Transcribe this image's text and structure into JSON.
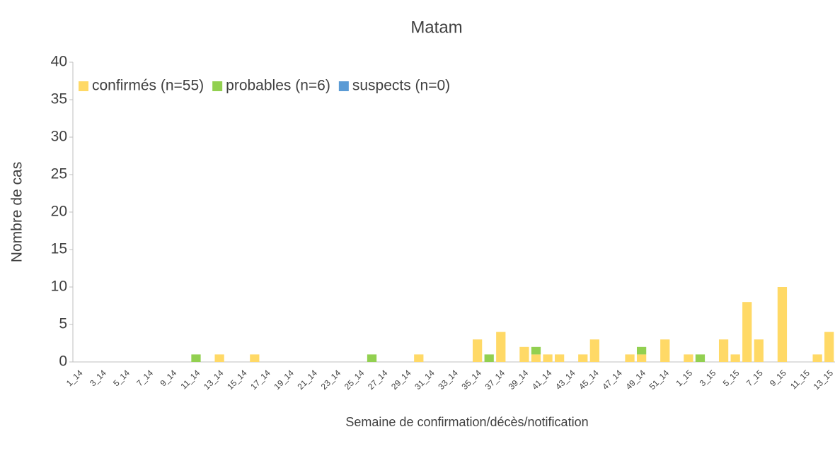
{
  "chart_data": {
    "type": "stacked_bar",
    "title": "Matam",
    "x_label": "Semaine de confirmation/décès/notification",
    "y_label": "Nombre de cas",
    "categories": [
      "1_14",
      null,
      "3_14",
      null,
      "5_14",
      null,
      "7_14",
      null,
      "9_14",
      null,
      "11_14",
      null,
      "13_14",
      null,
      "15_14",
      null,
      "17_14",
      null,
      "19_14",
      null,
      "21_14",
      null,
      "23_14",
      null,
      "25_14",
      null,
      "27_14",
      null,
      "29_14",
      null,
      "31_14",
      null,
      "33_14",
      null,
      "35_14",
      null,
      "37_14",
      null,
      "39_14",
      null,
      "41_14",
      null,
      "43_14",
      null,
      "45_14",
      null,
      "47_14",
      null,
      "49_14",
      null,
      "51_14",
      null,
      "1_15",
      null,
      "3_15",
      null,
      "5_15",
      null,
      "7_15",
      null,
      "9_15",
      null,
      "11_15",
      null,
      "13_15"
    ],
    "series": [
      {
        "name": "confirmés (n=55)",
        "color": "#ffd966",
        "values": [
          0,
          0,
          0,
          0,
          0,
          0,
          0,
          0,
          0,
          0,
          0,
          0,
          1,
          0,
          0,
          1,
          0,
          0,
          0,
          0,
          0,
          0,
          0,
          0,
          0,
          0,
          0,
          0,
          0,
          1,
          0,
          0,
          0,
          0,
          3,
          0,
          4,
          0,
          2,
          1,
          1,
          1,
          0,
          1,
          3,
          0,
          0,
          1,
          1,
          0,
          3,
          0,
          1,
          0,
          0,
          3,
          1,
          8,
          3,
          0,
          10,
          0,
          0,
          1,
          4
        ]
      },
      {
        "name": "probables (n=6)",
        "color": "#92d050",
        "values": [
          0,
          0,
          0,
          0,
          0,
          0,
          0,
          0,
          0,
          0,
          1,
          0,
          0,
          0,
          0,
          0,
          0,
          0,
          0,
          0,
          0,
          0,
          0,
          0,
          0,
          1,
          0,
          0,
          0,
          0,
          0,
          0,
          0,
          0,
          0,
          1,
          0,
          0,
          0,
          1,
          0,
          0,
          0,
          0,
          0,
          0,
          0,
          0,
          1,
          0,
          0,
          0,
          0,
          1,
          0,
          0,
          0,
          0,
          0,
          0,
          0,
          0,
          0,
          0,
          0
        ]
      },
      {
        "name": "suspects (n=0)",
        "color": "#5b9bd5",
        "values": [
          0,
          0,
          0,
          0,
          0,
          0,
          0,
          0,
          0,
          0,
          0,
          0,
          0,
          0,
          0,
          0,
          0,
          0,
          0,
          0,
          0,
          0,
          0,
          0,
          0,
          0,
          0,
          0,
          0,
          0,
          0,
          0,
          0,
          0,
          0,
          0,
          0,
          0,
          0,
          0,
          0,
          0,
          0,
          0,
          0,
          0,
          0,
          0,
          0,
          0,
          0,
          0,
          0,
          0,
          0,
          0,
          0,
          0,
          0,
          0,
          0,
          0,
          0,
          0,
          0
        ]
      }
    ],
    "ylim": [
      0,
      40
    ],
    "yticks": [
      0,
      5,
      10,
      15,
      20,
      25,
      30,
      35,
      40
    ],
    "grid": false,
    "legend": "top-left"
  }
}
